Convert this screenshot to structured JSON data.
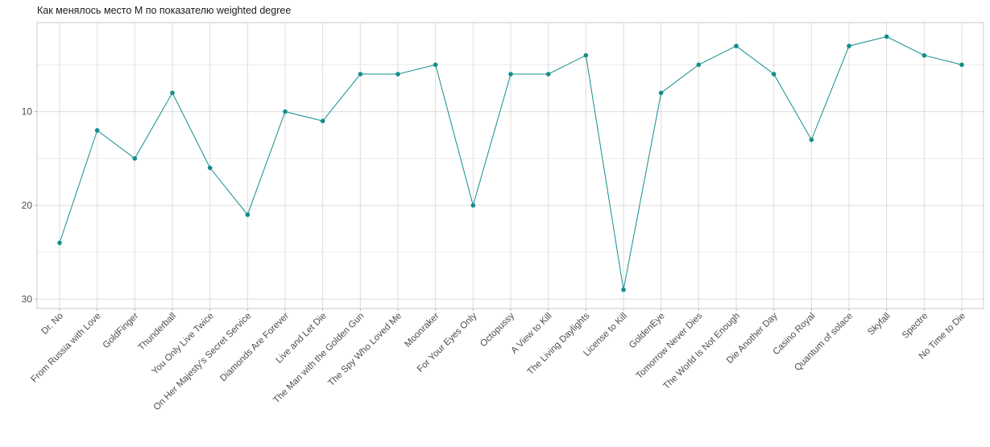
{
  "chart_data": {
    "type": "line",
    "title": "Как менялось место М по показателю weighted degree",
    "xlabel": "",
    "ylabel": "",
    "y_reversed": true,
    "ylim": [
      31,
      0.5
    ],
    "y_ticks": [
      10,
      20,
      30
    ],
    "grid": true,
    "color": "#138d8b",
    "categories": [
      "Dr. No",
      "From Russia with Love",
      "GoldFinger",
      "Thunderball",
      "You Only Live Twice",
      "On Her Majesty's Secret Service",
      "Diamonds Are Forever",
      "Live and Let Die",
      "The Man with the Golden Gun",
      "The Spy Who Loved Me",
      "Moonraker",
      "For Your Eyes Only",
      "Octopussy",
      "A View to Kill",
      "The Living Daylights",
      "License to Kill",
      "GoldenEye",
      "Tomorrow Never Dies",
      "The World Is Not Enough",
      "Die Another Day",
      "Casino Royal",
      "Quantum of solace",
      "Skyfall",
      "Spectre",
      "No Time to Die"
    ],
    "values": [
      24,
      12,
      15,
      8,
      16,
      21,
      10,
      11,
      6,
      6,
      5,
      20,
      6,
      6,
      4,
      29,
      8,
      5,
      3,
      6,
      13,
      3,
      2,
      4,
      5
    ]
  }
}
